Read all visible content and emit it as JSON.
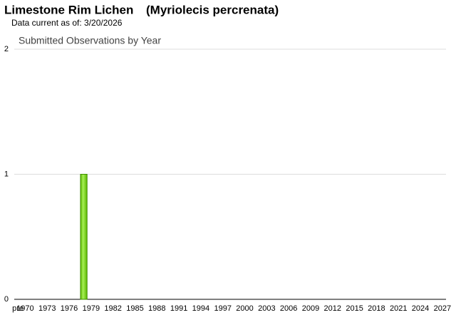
{
  "chart_data": {
    "type": "bar",
    "title": "Limestone Rim Lichen",
    "scientific_name": "(Myriolecis percrenata)",
    "subtitle": "Data current as of: 3/20/2026",
    "chart_title": "Submitted Observations by Year",
    "categories": [
      "pre",
      "1970",
      null,
      null,
      "1973",
      null,
      null,
      "1976",
      null,
      null,
      "1979",
      null,
      null,
      "1982",
      null,
      null,
      "1985",
      null,
      null,
      "1988",
      null,
      null,
      "1991",
      null,
      null,
      "1994",
      null,
      null,
      "1997",
      null,
      null,
      "2000",
      null,
      null,
      "2003",
      null,
      null,
      "2006",
      null,
      null,
      "2009",
      null,
      null,
      "2012",
      null,
      null,
      "2015",
      null,
      null,
      "2018",
      null,
      null,
      "2021",
      null,
      null,
      "2024",
      null,
      null,
      "2027"
    ],
    "values": [
      0,
      0,
      0,
      0,
      0,
      0,
      0,
      0,
      0,
      1,
      0,
      0,
      0,
      0,
      0,
      0,
      0,
      0,
      0,
      0,
      0,
      0,
      0,
      0,
      0,
      0,
      0,
      0,
      0,
      0,
      0,
      0,
      0,
      0,
      0,
      0,
      0,
      0,
      0,
      0,
      0,
      0,
      0,
      0,
      0,
      0,
      0,
      0,
      0,
      0,
      0,
      0,
      0,
      0,
      0,
      0,
      0,
      0,
      0
    ],
    "color": "#7ed321",
    "ylim": [
      0,
      2
    ],
    "yticks": [
      0,
      1,
      2
    ],
    "grid": true
  }
}
